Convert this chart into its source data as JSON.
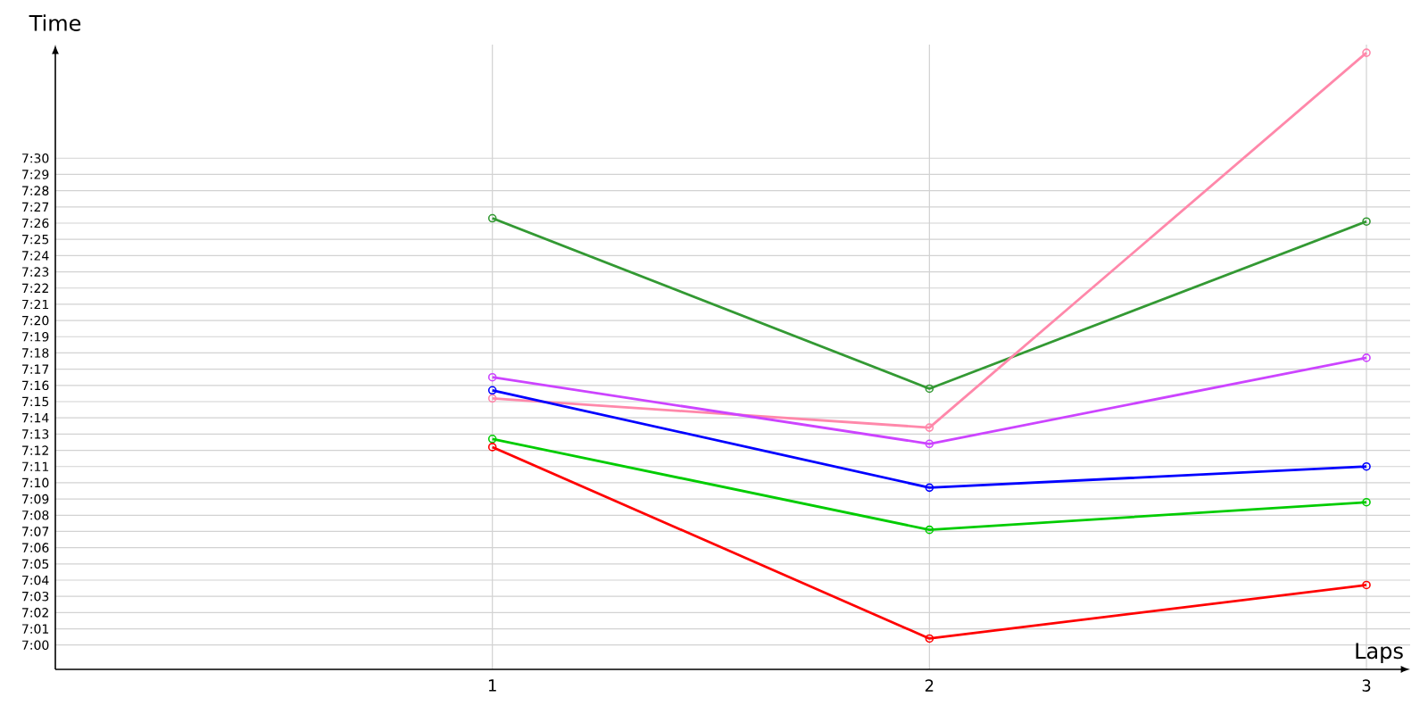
{
  "chart_data": {
    "type": "line",
    "xlabel": "Laps",
    "ylabel": "Time",
    "x": [
      1,
      2,
      3
    ],
    "series": [
      {
        "color": "#339933",
        "values": [
          446.3,
          435.8,
          446.1
        ]
      },
      {
        "color": "#ff88aa",
        "values": [
          435.2,
          433.4,
          456.5
        ]
      },
      {
        "color": "#cc44ff",
        "values": [
          436.5,
          432.4,
          437.7
        ]
      },
      {
        "color": "#0000ff",
        "values": [
          435.7,
          429.7,
          431.0
        ]
      },
      {
        "color": "#00cc00",
        "values": [
          432.7,
          427.1,
          428.8
        ]
      },
      {
        "color": "#ff0000",
        "values": [
          432.2,
          420.4,
          423.7
        ]
      }
    ],
    "xlim": [
      0,
      3.1
    ],
    "xticks": [
      1,
      2,
      3
    ],
    "ylim": [
      418.5,
      457
    ],
    "yticks": [
      {
        "value": 420,
        "label": "7:00"
      },
      {
        "value": 421,
        "label": "7:01"
      },
      {
        "value": 422,
        "label": "7:02"
      },
      {
        "value": 423,
        "label": "7:03"
      },
      {
        "value": 424,
        "label": "7:04"
      },
      {
        "value": 425,
        "label": "7:05"
      },
      {
        "value": 426,
        "label": "7:06"
      },
      {
        "value": 427,
        "label": "7:07"
      },
      {
        "value": 428,
        "label": "7:08"
      },
      {
        "value": 429,
        "label": "7:09"
      },
      {
        "value": 430,
        "label": "7:10"
      },
      {
        "value": 431,
        "label": "7:11"
      },
      {
        "value": 432,
        "label": "7:12"
      },
      {
        "value": 433,
        "label": "7:13"
      },
      {
        "value": 434,
        "label": "7:14"
      },
      {
        "value": 435,
        "label": "7:15"
      },
      {
        "value": 436,
        "label": "7:16"
      },
      {
        "value": 437,
        "label": "7:17"
      },
      {
        "value": 438,
        "label": "7:18"
      },
      {
        "value": 439,
        "label": "7:19"
      },
      {
        "value": 440,
        "label": "7:20"
      },
      {
        "value": 441,
        "label": "7:21"
      },
      {
        "value": 442,
        "label": "7:22"
      },
      {
        "value": 443,
        "label": "7:23"
      },
      {
        "value": 444,
        "label": "7:24"
      },
      {
        "value": 445,
        "label": "7:25"
      },
      {
        "value": 446,
        "label": "7:26"
      },
      {
        "value": 447,
        "label": "7:27"
      },
      {
        "value": 448,
        "label": "7:28"
      },
      {
        "value": 449,
        "label": "7:29"
      },
      {
        "value": 450,
        "label": "7:30"
      }
    ],
    "grid": true,
    "marker": "circle",
    "line_style": "solid"
  }
}
